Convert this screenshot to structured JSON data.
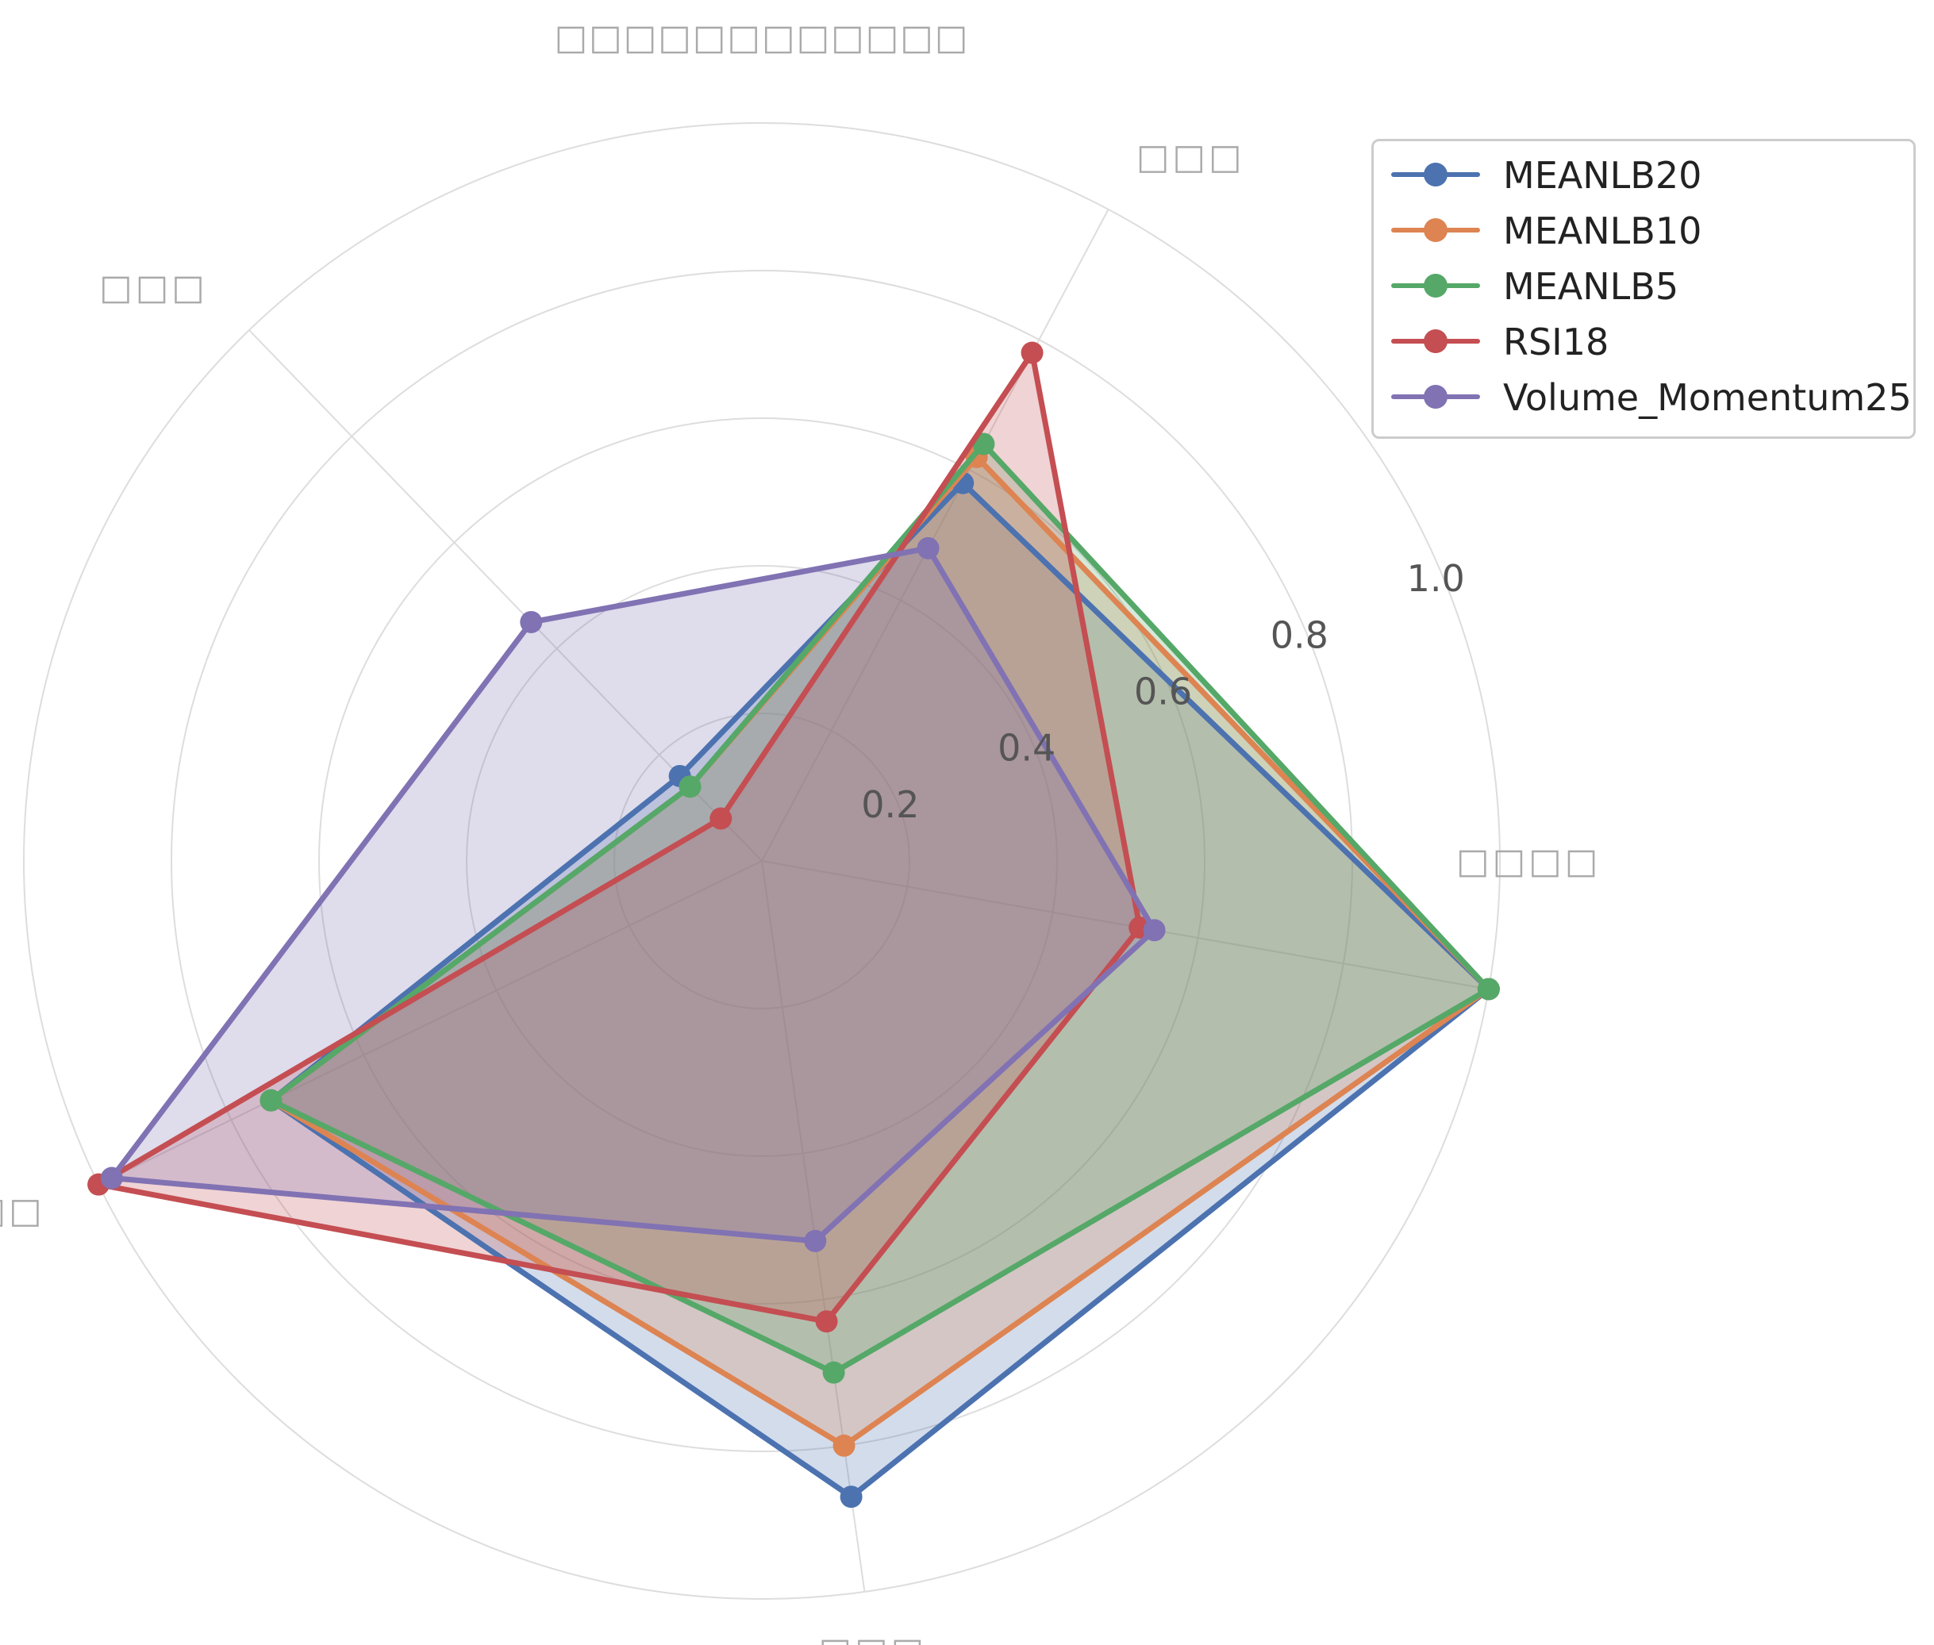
{
  "chart_data": {
    "type": "radar",
    "title": "□□□□□□□□□□□□",
    "axes": [
      "□□□□",
      "□□□",
      "□□□",
      "□□□",
      "□□□"
    ],
    "rlim": [
      0,
      1.0
    ],
    "r_ticks": [
      "0.2",
      "0.4",
      "0.6",
      "0.8",
      "1.0"
    ],
    "grid": true,
    "legend_position": "top-right",
    "series": [
      {
        "name": "MEANLB20",
        "color": "#4c72b0",
        "values": [
          1.0,
          0.58,
          0.16,
          0.74,
          0.87
        ]
      },
      {
        "name": "MEANLB10",
        "color": "#dd8452",
        "values": [
          1.0,
          0.62,
          0.14,
          0.74,
          0.8
        ]
      },
      {
        "name": "MEANLB5",
        "color": "#55a868",
        "values": [
          1.0,
          0.64,
          0.14,
          0.74,
          0.7
        ]
      },
      {
        "name": "RSI18",
        "color": "#c44e52",
        "values": [
          0.52,
          0.78,
          0.08,
          1.0,
          0.63
        ]
      },
      {
        "name": "Volume_Momentum25",
        "color": "#8172b3",
        "values": [
          0.54,
          0.48,
          0.45,
          0.98,
          0.52
        ]
      }
    ]
  }
}
